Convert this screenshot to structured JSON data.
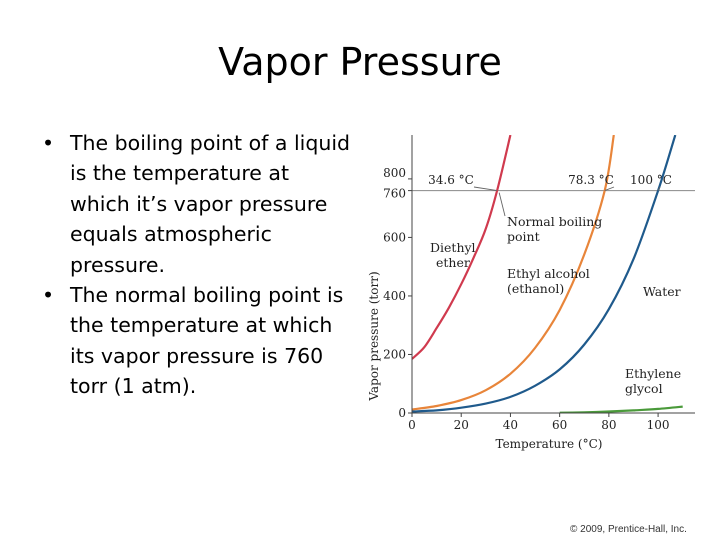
{
  "slide": {
    "title": "Vapor Pressure",
    "bullets": [
      "The boiling point of a liquid is the temperature at which it’s vapor pressure equals atmospheric pressure.",
      "The normal boiling point is the temperature at which its vapor pressure is 760 torr (1 atm)."
    ],
    "copyright": "© 2009, Prentice-Hall, Inc."
  },
  "chart_data": {
    "type": "line",
    "title": "",
    "xlabel": "Temperature (°C)",
    "ylabel": "Vapor pressure (torr)",
    "xlim": [
      0,
      115
    ],
    "ylim": [
      0,
      950
    ],
    "x_ticks": [
      "0",
      "20",
      "40",
      "60",
      "80",
      "100"
    ],
    "y_ticks": [
      "0",
      "200",
      "400",
      "600",
      "760",
      "800"
    ],
    "reference_line": {
      "y": 760
    },
    "series": [
      {
        "name": "Diethyl ether",
        "color": "#d03a4e",
        "x": [
          0,
          5,
          10,
          15,
          20,
          25,
          30,
          34.6,
          40
        ],
        "y": [
          185,
          225,
          290,
          360,
          440,
          530,
          630,
          760,
          950
        ]
      },
      {
        "name": "Ethyl alcohol (ethanol)",
        "color": "#e8853a",
        "x": [
          0,
          10,
          20,
          30,
          40,
          50,
          60,
          70,
          78.3,
          82
        ],
        "y": [
          12,
          24,
          44,
          78,
          134,
          222,
          352,
          542,
          760,
          950
        ]
      },
      {
        "name": "Water",
        "color": "#1f5a8c",
        "x": [
          0,
          10,
          20,
          30,
          40,
          50,
          60,
          70,
          80,
          90,
          100,
          107
        ],
        "y": [
          5,
          9,
          18,
          32,
          55,
          93,
          149,
          234,
          355,
          526,
          760,
          950
        ]
      },
      {
        "name": "Ethylene glycol",
        "color": "#4a9a3a",
        "x": [
          60,
          70,
          80,
          90,
          100,
          110
        ],
        "y": [
          1,
          2,
          5,
          9,
          14,
          22
        ]
      }
    ],
    "annotations": {
      "bp_ether": "34.6 °C",
      "bp_ethanol": "78.3 °C",
      "bp_water": "100 °C",
      "normal_bp_line1": "Normal boiling",
      "normal_bp_line2": "point",
      "ether_line1": "Diethyl",
      "ether_line2": "ether",
      "ethanol_line1": "Ethyl alcohol",
      "ethanol_line2": "(ethanol)",
      "water": "Water",
      "glycol_line1": "Ethylene",
      "glycol_line2": "glycol"
    }
  }
}
